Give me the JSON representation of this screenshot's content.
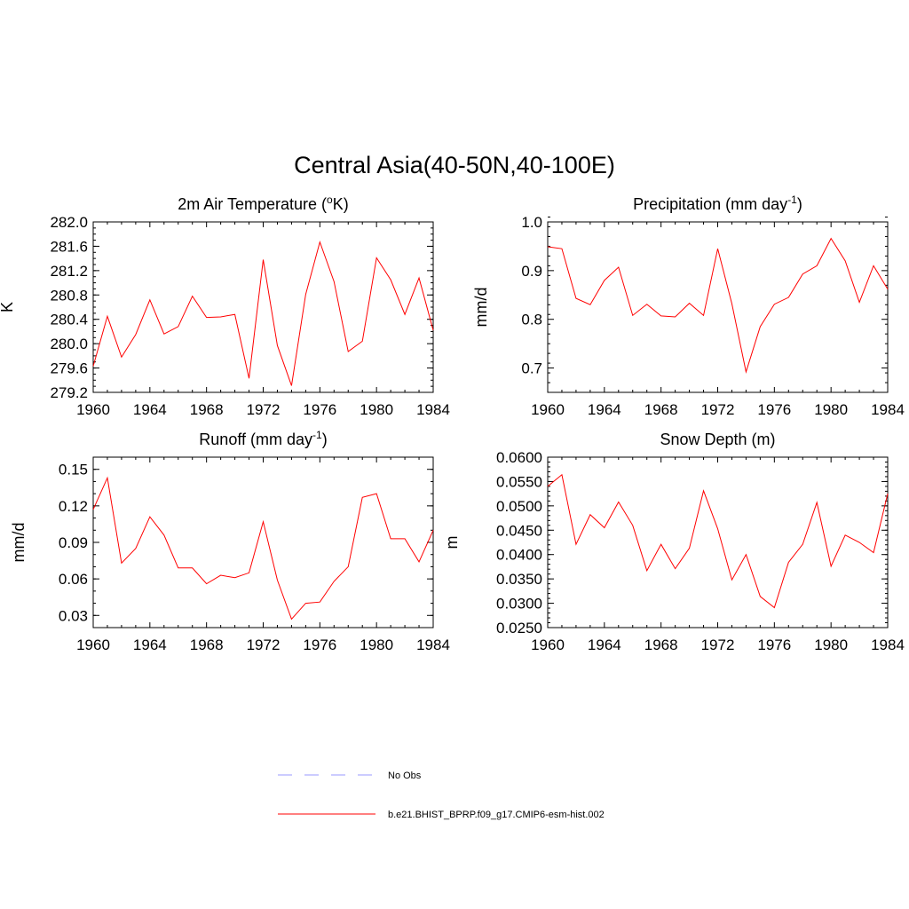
{
  "title": "Central Asia(40-50N,40-100E)",
  "chart_data": [
    {
      "type": "line",
      "title_main": "2m Air Temperature (",
      "title_sup": "o",
      "title_end": "K)",
      "ylabel": "K",
      "xlim": [
        1960,
        1984
      ],
      "ylim": [
        279.2,
        282.0
      ],
      "xticks": [
        1960,
        1964,
        1968,
        1972,
        1976,
        1980,
        1984
      ],
      "xtick_labels": [
        "1960",
        "1964",
        "1968",
        "1972",
        "1976",
        "1980",
        "1984"
      ],
      "yticks": [
        279.2,
        279.6,
        280.0,
        280.4,
        280.8,
        281.2,
        281.6,
        282.0
      ],
      "ytick_labels": [
        "279.2",
        "279.6",
        "280.0",
        "280.4",
        "280.8",
        "281.2",
        "281.6",
        "282.0"
      ],
      "yminor_step": 0.1,
      "color": "#ff0000",
      "x": [
        1960,
        1961,
        1962,
        1963,
        1964,
        1965,
        1966,
        1967,
        1968,
        1969,
        1970,
        1971,
        1972,
        1973,
        1974,
        1975,
        1976,
        1977,
        1978,
        1979,
        1980,
        1981,
        1982,
        1983,
        1984
      ],
      "y": [
        279.63,
        280.45,
        279.78,
        280.15,
        280.72,
        280.16,
        280.28,
        280.78,
        280.43,
        280.44,
        280.48,
        279.43,
        281.38,
        279.97,
        279.31,
        280.81,
        281.67,
        281.02,
        279.87,
        280.04,
        281.41,
        281.05,
        280.48,
        281.08,
        280.22
      ]
    },
    {
      "type": "line",
      "title_main": "Precipitation (mm day",
      "title_sup": "-1",
      "title_end": ")",
      "ylabel": "mm/d",
      "xlim": [
        1960,
        1984
      ],
      "ylim": [
        0.65,
        1.0
      ],
      "xticks": [
        1960,
        1964,
        1968,
        1972,
        1976,
        1980,
        1984
      ],
      "xtick_labels": [
        "1960",
        "1964",
        "1968",
        "1972",
        "1976",
        "1980",
        "1984"
      ],
      "yticks": [
        0.7,
        0.8,
        0.9,
        1.0
      ],
      "ytick_labels": [
        "0.7",
        "0.8",
        "0.9",
        "1.0"
      ],
      "yminor_step": 0.02,
      "color": "#ff0000",
      "x": [
        1960,
        1961,
        1962,
        1963,
        1964,
        1965,
        1966,
        1967,
        1968,
        1969,
        1970,
        1971,
        1972,
        1973,
        1974,
        1975,
        1976,
        1977,
        1978,
        1979,
        1980,
        1981,
        1982,
        1983,
        1984
      ],
      "y": [
        0.949,
        0.945,
        0.843,
        0.83,
        0.88,
        0.907,
        0.808,
        0.831,
        0.807,
        0.805,
        0.833,
        0.808,
        0.945,
        0.832,
        0.692,
        0.785,
        0.831,
        0.845,
        0.893,
        0.91,
        0.966,
        0.92,
        0.835,
        0.91,
        0.862
      ]
    },
    {
      "type": "line",
      "title_main": "Runoff (mm day",
      "title_sup": "-1",
      "title_end": ")",
      "ylabel": "mm/d",
      "xlim": [
        1960,
        1984
      ],
      "ylim": [
        0.02,
        0.16
      ],
      "xticks": [
        1960,
        1964,
        1968,
        1972,
        1976,
        1980,
        1984
      ],
      "xtick_labels": [
        "1960",
        "1964",
        "1968",
        "1972",
        "1976",
        "1980",
        "1984"
      ],
      "yticks": [
        0.03,
        0.06,
        0.09,
        0.12,
        0.15
      ],
      "ytick_labels": [
        "0.03",
        "0.06",
        "0.09",
        "0.12",
        "0.15"
      ],
      "yminor_step": 0.01,
      "color": "#ff0000",
      "x": [
        1960,
        1961,
        1962,
        1963,
        1964,
        1965,
        1966,
        1967,
        1968,
        1969,
        1970,
        1971,
        1972,
        1973,
        1974,
        1975,
        1976,
        1977,
        1978,
        1979,
        1980,
        1981,
        1982,
        1983,
        1984
      ],
      "y": [
        0.117,
        0.143,
        0.073,
        0.085,
        0.111,
        0.096,
        0.069,
        0.069,
        0.056,
        0.063,
        0.061,
        0.065,
        0.107,
        0.059,
        0.027,
        0.04,
        0.041,
        0.058,
        0.07,
        0.127,
        0.13,
        0.093,
        0.093,
        0.074,
        0.1
      ]
    },
    {
      "type": "line",
      "title_main": "Snow Depth (m)",
      "title_sup": "",
      "title_end": "",
      "ylabel": "m",
      "xlim": [
        1960,
        1984
      ],
      "ylim": [
        0.025,
        0.06
      ],
      "xticks": [
        1960,
        1964,
        1968,
        1972,
        1976,
        1980,
        1984
      ],
      "xtick_labels": [
        "1960",
        "1964",
        "1968",
        "1972",
        "1976",
        "1980",
        "1984"
      ],
      "yticks": [
        0.025,
        0.03,
        0.035,
        0.04,
        0.045,
        0.05,
        0.055,
        0.06
      ],
      "ytick_labels": [
        "0.0250",
        "0.0300",
        "0.0350",
        "0.0400",
        "0.0450",
        "0.0500",
        "0.0550",
        "0.0600"
      ],
      "yminor_step": 0.001,
      "color": "#ff0000",
      "x": [
        1960,
        1961,
        1962,
        1963,
        1964,
        1965,
        1966,
        1967,
        1968,
        1969,
        1970,
        1971,
        1972,
        1973,
        1974,
        1975,
        1976,
        1977,
        1978,
        1979,
        1980,
        1981,
        1982,
        1983,
        1984
      ],
      "y": [
        0.054,
        0.0564,
        0.0421,
        0.0482,
        0.0455,
        0.0508,
        0.046,
        0.0367,
        0.0421,
        0.0371,
        0.0413,
        0.0531,
        0.0453,
        0.0348,
        0.04,
        0.0314,
        0.0291,
        0.0384,
        0.0421,
        0.0507,
        0.0376,
        0.044,
        0.0425,
        0.0404,
        0.0525
      ]
    }
  ],
  "legend": [
    {
      "label": "No Obs",
      "color": "#9999ff",
      "style": "dashed"
    },
    {
      "label": "b.e21.BHIST_BPRP.f09_g17.CMIP6-esm-hist.002",
      "color": "#ff0000",
      "style": "solid"
    }
  ]
}
